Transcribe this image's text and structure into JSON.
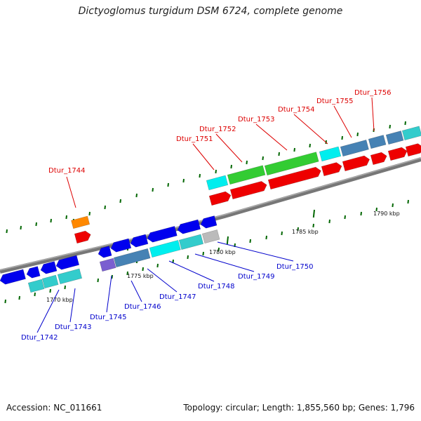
{
  "title": "Dictyoglomus turgidum DSM 6724, complete genome",
  "footer": {
    "accession": "Accession: NC_011661",
    "summary": "Topology: circular; Length: 1,855,560 bp; Genes: 1,796"
  },
  "scale_labels": [
    "1770 kbp",
    "1775 kbp",
    "1780 kbp",
    "1785 kbp",
    "1790 kbp"
  ],
  "top_labels": [
    "Dtur_1744",
    "Dtur_1751",
    "Dtur_1752",
    "Dtur_1753",
    "Dtur_1754",
    "Dtur_1755",
    "Dtur_1756"
  ],
  "bottom_labels": [
    "Dtur_1742",
    "Dtur_1743",
    "Dtur_1745",
    "Dtur_1746",
    "Dtur_1747",
    "Dtur_1748",
    "Dtur_1749",
    "Dtur_1750"
  ],
  "colors": {
    "forward_label": "#dd0000",
    "reverse_label": "#0000cc",
    "cds_forward": "#ee0000",
    "cds_reverse": "#0000ee",
    "cyan": "#00eeee",
    "teal": "#33cccc",
    "steelblue": "#4682b4",
    "green": "#33cc33",
    "orange": "#ff8800",
    "gray": "#bbbbbb",
    "purple": "#7a5fd0",
    "tick": "#006600",
    "backbone": "#777777"
  }
}
